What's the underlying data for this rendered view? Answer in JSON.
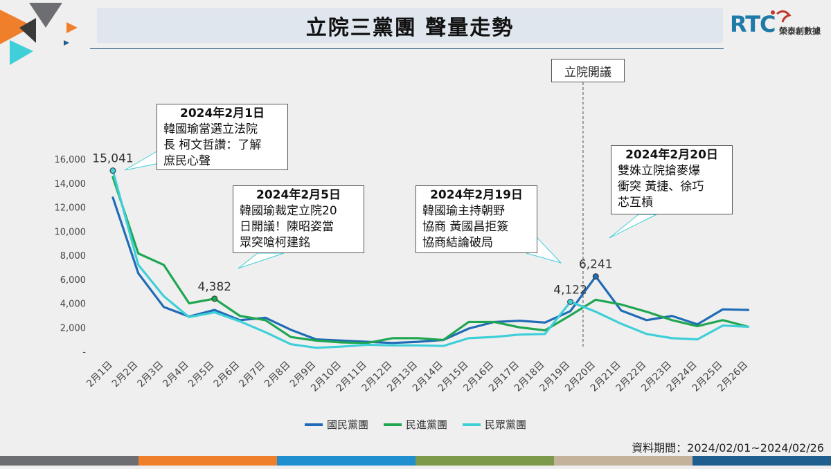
{
  "header": {
    "title": "立院三黨團  聲量走勢",
    "logo_text": "RTC",
    "logo_name": "榮泰創數據"
  },
  "source_note": "資料期間：2024/02/01~2024/02/26",
  "colors": {
    "kmt": "#1f6bb5",
    "dpp": "#1fa651",
    "tpp": "#3ecfd8",
    "footer": [
      "#6d6e71",
      "#f07f2b",
      "#1f8fcf",
      "#7c9a4a",
      "#c4b39a",
      "#1f5f8f"
    ]
  },
  "callouts": [
    {
      "date": "2024年2月1日",
      "body": "韓國瑜當選立法院\n長  柯文哲讚：了解\n庶民心聲"
    },
    {
      "date": "2024年2月5日",
      "body": "韓國瑜裁定立院20\n日開議！陳昭姿當\n眾突嗆柯建銘"
    },
    {
      "date": "2024年2月19日",
      "body": "韓國瑜主持朝野\n協商 黃國昌拒簽\n協商結論破局"
    },
    {
      "date": "2024年2月20日",
      "body": "雙姝立院搶麥爆\n衝突  黃捷、徐巧\n芯互槓"
    }
  ],
  "session_label": "立院開議",
  "chart_data": {
    "type": "line",
    "categories": [
      "2月1日",
      "2月2日",
      "2月3日",
      "2月4日",
      "2月5日",
      "2月6日",
      "2月7日",
      "2月8日",
      "2月9日",
      "2月10日",
      "2月11日",
      "2月12日",
      "2月13日",
      "2月14日",
      "2月15日",
      "2月16日",
      "2月17日",
      "2月18日",
      "2月19日",
      "2月20日",
      "2月21日",
      "2月22日",
      "2月23日",
      "2月24日",
      "2月25日",
      "2月26日"
    ],
    "ylim": [
      0,
      16000
    ],
    "yticks": [
      "-",
      "2,000",
      "4,000",
      "6,000",
      "8,000",
      "10,000",
      "12,000",
      "14,000",
      "16,000"
    ],
    "grid": false,
    "legend_position": "bottom",
    "series": [
      {
        "name": "國民黨團",
        "values": [
          12800,
          6500,
          3700,
          2900,
          3450,
          2600,
          2800,
          1800,
          1000,
          900,
          800,
          700,
          800,
          950,
          1900,
          2450,
          2550,
          2400,
          3350,
          6241,
          3400,
          2600,
          2950,
          2250,
          3500,
          3450
        ]
      },
      {
        "name": "民進黨團",
        "values": [
          14500,
          8150,
          7200,
          4000,
          4382,
          2950,
          2600,
          1200,
          900,
          750,
          700,
          1100,
          1100,
          950,
          2450,
          2450,
          2000,
          1750,
          3000,
          4300,
          3900,
          3300,
          2600,
          2100,
          2600,
          2050
        ]
      },
      {
        "name": "民眾黨團",
        "values": [
          15041,
          7200,
          4600,
          2850,
          3250,
          2500,
          1600,
          600,
          300,
          400,
          550,
          500,
          500,
          450,
          1100,
          1200,
          1400,
          1450,
          4122,
          3300,
          2300,
          1450,
          1100,
          1000,
          2150,
          2050
        ]
      }
    ],
    "annotations": [
      {
        "series": "民眾黨團",
        "category": "2月1日",
        "label": "15,041"
      },
      {
        "series": "民進黨團",
        "category": "2月5日",
        "label": "4,382"
      },
      {
        "series": "民眾黨團",
        "category": "2月19日",
        "label": "4,122"
      },
      {
        "series": "國民黨團",
        "category": "2月20日",
        "label": "6,241"
      }
    ],
    "vertical_marker": {
      "after_category": "2月19日",
      "label": "立院開議"
    }
  }
}
